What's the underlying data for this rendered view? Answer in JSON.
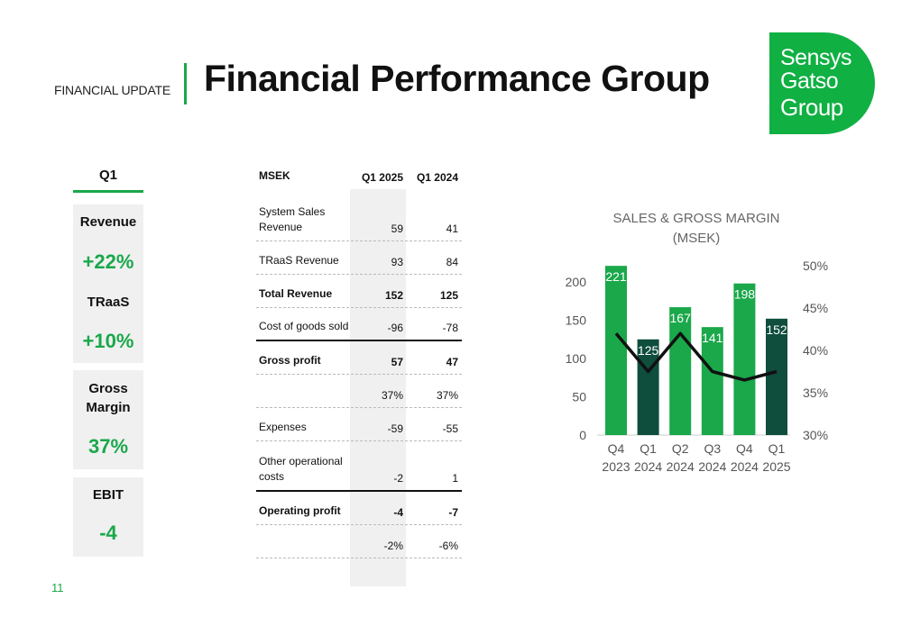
{
  "header": {
    "section": "FINANCIAL UPDATE",
    "title": "Financial Performance Group"
  },
  "logo": {
    "line1": "Sensys",
    "line2": "Gatso",
    "line3": "Group"
  },
  "kpis": {
    "period": "Q1",
    "revenue_label": "Revenue",
    "revenue_value": "+22%",
    "traas_label": "TRaaS",
    "traas_value": "+10%",
    "gross_margin_label_1": "Gross",
    "gross_margin_label_2": "Margin",
    "gross_margin_value": "37%",
    "ebit_label": "EBIT",
    "ebit_value": "-4"
  },
  "table": {
    "headers": [
      "MSEK",
      "Q1 2025",
      "Q1 2024"
    ],
    "rows": [
      {
        "label": [
          "System Sales",
          "Revenue"
        ],
        "q1_2025": "59",
        "q1_2024": "41",
        "bold": false
      },
      {
        "label": [
          "TRaaS Revenue"
        ],
        "q1_2025": "93",
        "q1_2024": "84",
        "bold": false
      },
      {
        "label": [
          "Total Revenue"
        ],
        "q1_2025": "152",
        "q1_2024": "125",
        "bold": true
      },
      {
        "label": [
          "Cost of goods sold"
        ],
        "q1_2025": "-96",
        "q1_2024": "-78",
        "bold": false
      },
      {
        "label": [
          "Gross profit"
        ],
        "q1_2025": "57",
        "q1_2024": "47",
        "bold": true
      },
      {
        "label": [
          ""
        ],
        "q1_2025": "37%",
        "q1_2024": "37%",
        "bold": false
      },
      {
        "label": [
          "Expenses"
        ],
        "q1_2025": "-59",
        "q1_2024": "-55",
        "bold": false
      },
      {
        "label": [
          "Other operational",
          "costs"
        ],
        "q1_2025": "-2",
        "q1_2024": "1",
        "bold": false
      },
      {
        "label": [
          "Operating profit"
        ],
        "q1_2025": "-4",
        "q1_2024": "-7",
        "bold": true
      },
      {
        "label": [
          ""
        ],
        "q1_2025": "-2%",
        "q1_2024": "-6%",
        "bold": false
      }
    ]
  },
  "chart_data": {
    "type": "bar",
    "title": "SALES & GROSS MARGIN (MSEK)",
    "categories": [
      [
        "Q4",
        "2023"
      ],
      [
        "Q1",
        "2024"
      ],
      [
        "Q2",
        "2024"
      ],
      [
        "Q3",
        "2024"
      ],
      [
        "Q4",
        "2024"
      ],
      [
        "Q1",
        "2025"
      ]
    ],
    "series": [
      {
        "values": [
          221,
          125,
          167,
          141,
          198,
          152
        ],
        "colors": [
          "#1aa84a",
          "#0f4d3c",
          "#1aa84a",
          "#1aa84a",
          "#1aa84a",
          "#0f4d3c"
        ]
      },
      {
        "type": "line",
        "axis": "right",
        "values": [
          42.0,
          37.5,
          42.0,
          37.5,
          36.5,
          37.5
        ],
        "color": "#111111"
      }
    ],
    "ylim": [
      0,
      200
    ],
    "yticks": [
      "0",
      "50",
      "100",
      "150",
      "200"
    ],
    "y2lim": [
      30,
      50
    ],
    "y2ticks": [
      "30%",
      "35%",
      "40%",
      "45%",
      "50%"
    ],
    "grid": false
  },
  "page_number": "11"
}
